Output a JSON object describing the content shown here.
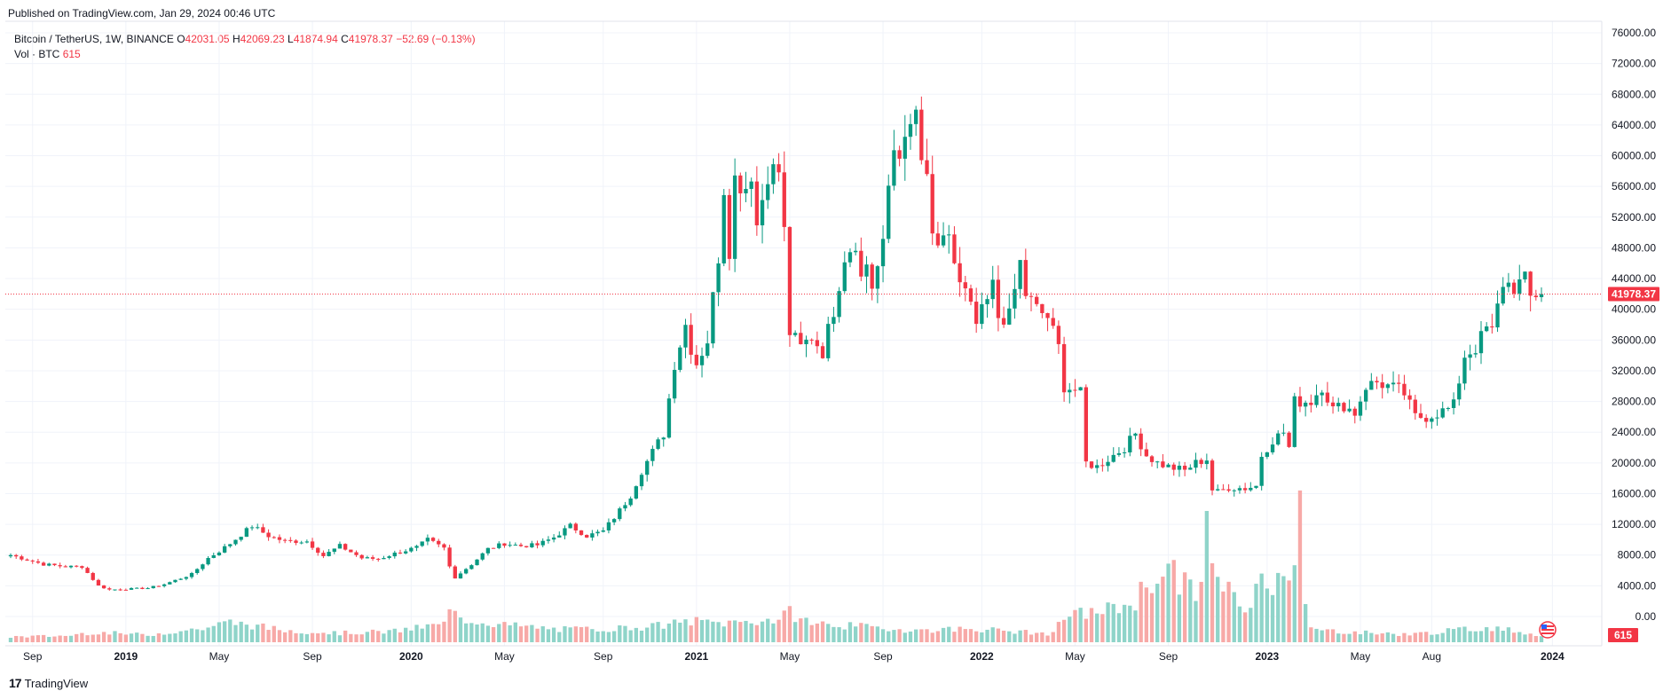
{
  "header": {
    "published": "Published on TradingView.com, Jan 29, 2024 00:46 UTC"
  },
  "legend": {
    "symbol": "Bitcoin / TetherUS, 1W, BINANCE",
    "o_key": "O",
    "o_val": "42031.05",
    "h_key": "H",
    "h_val": "42069.23",
    "l_key": "L",
    "l_val": "41874.94",
    "c_key": "C",
    "c_val": "41978.37",
    "change": "−52.69 (−0.13%)",
    "vol_label": "Vol · BTC",
    "vol_val": "615"
  },
  "footer": {
    "brand": "TradingView",
    "logo_text": "17"
  },
  "colors": {
    "up": "#089981",
    "down": "#f23645",
    "vol_up": "#8fd4c9",
    "vol_down": "#f7a9a7",
    "grid": "#f0f3fa",
    "last_price_line": "#f23645"
  },
  "chart_data": {
    "type": "candlestick",
    "symbol": "Bitcoin / TetherUS",
    "interval": "1W",
    "exchange": "BINANCE",
    "ylim": [
      0,
      77000
    ],
    "y_ticks": [
      "76000.00",
      "72000.00",
      "68000.00",
      "64000.00",
      "60000.00",
      "56000.00",
      "52000.00",
      "48000.00",
      "44000.00",
      "40000.00",
      "36000.00",
      "32000.00",
      "28000.00",
      "24000.00",
      "20000.00",
      "16000.00",
      "12000.00",
      "8000.00",
      "4000.00",
      "0.00"
    ],
    "y_tick_values": [
      76000,
      72000,
      68000,
      64000,
      60000,
      56000,
      52000,
      48000,
      44000,
      40000,
      36000,
      32000,
      28000,
      24000,
      20000,
      16000,
      12000,
      8000,
      4000,
      0
    ],
    "x_ticks": [
      {
        "label": "Sep",
        "week": 4
      },
      {
        "label": "2019",
        "week": 21
      },
      {
        "label": "May",
        "week": 38
      },
      {
        "label": "Sep",
        "week": 55
      },
      {
        "label": "2020",
        "week": 73
      },
      {
        "label": "May",
        "week": 90
      },
      {
        "label": "Sep",
        "week": 108
      },
      {
        "label": "2021",
        "week": 125
      },
      {
        "label": "May",
        "week": 142
      },
      {
        "label": "Sep",
        "week": 159
      },
      {
        "label": "2022",
        "week": 177
      },
      {
        "label": "May",
        "week": 194
      },
      {
        "label": "Sep",
        "week": 211
      },
      {
        "label": "2023",
        "week": 229
      },
      {
        "label": "May",
        "week": 246
      },
      {
        "label": "Aug",
        "week": 259
      },
      {
        "label": "2024",
        "week": 281
      }
    ],
    "last_price": 41978.37,
    "last_price_label": "41978.37",
    "last_volume_label": "615",
    "anchors": [
      [
        0,
        8000
      ],
      [
        6,
        6800
      ],
      [
        10,
        6500
      ],
      [
        13,
        6500
      ],
      [
        16,
        4000
      ],
      [
        18,
        3500
      ],
      [
        22,
        3600
      ],
      [
        25,
        3700
      ],
      [
        28,
        4200
      ],
      [
        33,
        5500
      ],
      [
        36,
        7600
      ],
      [
        38,
        8500
      ],
      [
        40,
        9500
      ],
      [
        44,
        11800
      ],
      [
        47,
        10500
      ],
      [
        50,
        9800
      ],
      [
        54,
        9800
      ],
      [
        57,
        7900
      ],
      [
        60,
        9200
      ],
      [
        64,
        7600
      ],
      [
        67,
        7500
      ],
      [
        70,
        8200
      ],
      [
        74,
        9000
      ],
      [
        76,
        10000
      ],
      [
        79,
        8900
      ],
      [
        80,
        6500
      ],
      [
        81,
        5100
      ],
      [
        84,
        6800
      ],
      [
        87,
        8800
      ],
      [
        90,
        9500
      ],
      [
        93,
        9200
      ],
      [
        96,
        9300
      ],
      [
        99,
        10300
      ],
      [
        102,
        11800
      ],
      [
        105,
        10500
      ],
      [
        108,
        11100
      ],
      [
        111,
        13800
      ],
      [
        113,
        15800
      ],
      [
        115,
        19000
      ],
      [
        119,
        23800
      ],
      [
        121,
        33000
      ],
      [
        123,
        38000
      ],
      [
        124,
        35000
      ],
      [
        125,
        33000
      ],
      [
        127,
        36000
      ],
      [
        129,
        47000
      ],
      [
        130,
        56000
      ],
      [
        131,
        48000
      ],
      [
        132,
        57000
      ],
      [
        134,
        56000
      ],
      [
        135,
        58000
      ],
      [
        136,
        51000
      ],
      [
        138,
        58000
      ],
      [
        140,
        58000
      ],
      [
        141,
        50000
      ],
      [
        142,
        37000
      ],
      [
        144,
        35000
      ],
      [
        146,
        36500
      ],
      [
        148,
        34500
      ],
      [
        150,
        40000
      ],
      [
        152,
        47000
      ],
      [
        154,
        49000
      ],
      [
        155,
        44000
      ],
      [
        156,
        46000
      ],
      [
        157,
        43000
      ],
      [
        159,
        48000
      ],
      [
        160,
        56000
      ],
      [
        161,
        61000
      ],
      [
        163,
        61000
      ],
      [
        165,
        66000
      ],
      [
        166,
        58000
      ],
      [
        167,
        57000
      ],
      [
        168,
        50000
      ],
      [
        169,
        47000
      ],
      [
        171,
        50000
      ],
      [
        172,
        46000
      ],
      [
        173,
        43000
      ],
      [
        174,
        42000
      ],
      [
        176,
        38000
      ],
      [
        178,
        41000
      ],
      [
        179,
        43000
      ],
      [
        180,
        39000
      ],
      [
        182,
        39000
      ],
      [
        184,
        46000
      ],
      [
        185,
        42000
      ],
      [
        187,
        40000
      ],
      [
        189,
        39000
      ],
      [
        191,
        35000
      ],
      [
        192,
        30000
      ],
      [
        194,
        29500
      ],
      [
        195,
        29000
      ],
      [
        196,
        20000
      ],
      [
        198,
        19500
      ],
      [
        200,
        20500
      ],
      [
        203,
        22000
      ],
      [
        205,
        23800
      ],
      [
        207,
        21000
      ],
      [
        209,
        20000
      ],
      [
        211,
        19500
      ],
      [
        214,
        19000
      ],
      [
        216,
        20000
      ],
      [
        218,
        20500
      ],
      [
        219,
        16500
      ],
      [
        220,
        16200
      ],
      [
        222,
        16800
      ],
      [
        225,
        16700
      ],
      [
        227,
        17000
      ],
      [
        228,
        21000
      ],
      [
        230,
        23000
      ],
      [
        232,
        24000
      ],
      [
        233,
        22000
      ],
      [
        234,
        28000
      ],
      [
        235,
        28000
      ],
      [
        237,
        28000
      ],
      [
        239,
        30000
      ],
      [
        241,
        27000
      ],
      [
        243,
        27500
      ],
      [
        245,
        26500
      ],
      [
        247,
        30000
      ],
      [
        249,
        30500
      ],
      [
        251,
        30000
      ],
      [
        253,
        29500
      ],
      [
        254,
        29000
      ],
      [
        256,
        26000
      ],
      [
        258,
        26000
      ],
      [
        260,
        26500
      ],
      [
        262,
        27000
      ],
      [
        263,
        27500
      ],
      [
        265,
        34000
      ],
      [
        267,
        35000
      ],
      [
        269,
        37500
      ],
      [
        270,
        37000
      ],
      [
        272,
        43500
      ],
      [
        274,
        43000
      ],
      [
        276,
        43700
      ],
      [
        277,
        41500
      ],
      [
        278,
        42000
      ],
      [
        279,
        41978
      ]
    ],
    "volume_profile": [
      [
        0,
        600
      ],
      [
        10,
        700
      ],
      [
        15,
        1100
      ],
      [
        25,
        800
      ],
      [
        30,
        1200
      ],
      [
        35,
        1500
      ],
      [
        40,
        2200
      ],
      [
        50,
        1300
      ],
      [
        60,
        1000
      ],
      [
        70,
        1200
      ],
      [
        79,
        2000
      ],
      [
        80,
        3300
      ],
      [
        81,
        3000
      ],
      [
        83,
        2500
      ],
      [
        90,
        1900
      ],
      [
        100,
        1400
      ],
      [
        110,
        1500
      ],
      [
        118,
        1800
      ],
      [
        124,
        2300
      ],
      [
        130,
        2100
      ],
      [
        140,
        2500
      ],
      [
        142,
        3200
      ],
      [
        146,
        2100
      ],
      [
        155,
        1700
      ],
      [
        165,
        1300
      ],
      [
        175,
        1500
      ],
      [
        185,
        1100
      ],
      [
        190,
        900
      ],
      [
        192,
        2800
      ],
      [
        196,
        3200
      ],
      [
        200,
        3600
      ],
      [
        203,
        4000
      ],
      [
        205,
        4600
      ],
      [
        206,
        5500
      ],
      [
        208,
        6700
      ],
      [
        210,
        8000
      ],
      [
        212,
        7800
      ],
      [
        213,
        6500
      ],
      [
        216,
        5500
      ],
      [
        217,
        7500
      ],
      [
        218,
        13500
      ],
      [
        219,
        8000
      ],
      [
        220,
        6300
      ],
      [
        222,
        5500
      ],
      [
        224,
        4200
      ],
      [
        226,
        3800
      ],
      [
        228,
        7200
      ],
      [
        230,
        6800
      ],
      [
        231,
        7500
      ],
      [
        232,
        9000
      ],
      [
        233,
        8000
      ],
      [
        234,
        10000
      ],
      [
        235,
        16500
      ],
      [
        236,
        4000
      ],
      [
        237,
        1400
      ],
      [
        245,
        1100
      ],
      [
        255,
        850
      ],
      [
        265,
        1400
      ],
      [
        270,
        1600
      ],
      [
        276,
        1100
      ],
      [
        279,
        615
      ]
    ]
  }
}
